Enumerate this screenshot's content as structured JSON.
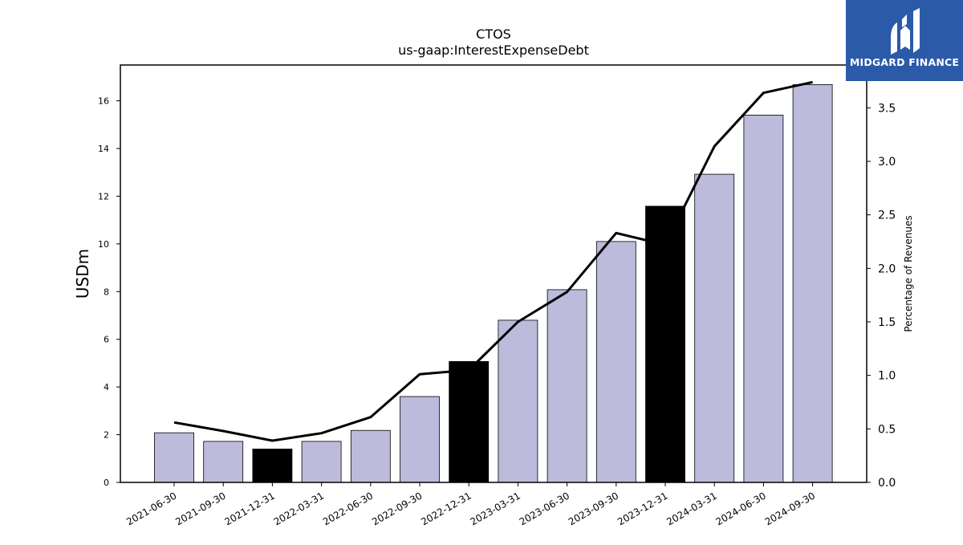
{
  "brand": {
    "name": "MIDGARD FINANCE",
    "bg_color": "#2b5aa9",
    "icon": "midgard-logo-icon"
  },
  "chart_data": {
    "type": "bar",
    "title": "CTOS",
    "subtitle": "us-gaap:InterestExpenseDebt",
    "ylabel": "USDm",
    "y2label": "Percentage of Revenues",
    "categories": [
      "2021-06-30",
      "2021-09-30",
      "2021-12-31",
      "2022-03-31",
      "2022-06-30",
      "2022-09-30",
      "2022-12-31",
      "2023-03-31",
      "2023-06-30",
      "2023-09-30",
      "2023-12-31",
      "2024-03-31",
      "2024-06-30",
      "2024-09-30"
    ],
    "series": [
      {
        "type": "bar",
        "axis": "left",
        "values": [
          2.08,
          1.72,
          1.4,
          1.72,
          2.18,
          3.6,
          5.07,
          6.8,
          8.08,
          10.1,
          11.58,
          12.92,
          15.4,
          16.68
        ],
        "colors": [
          "#bdbbdb",
          "#bdbbdb",
          "#000000",
          "#bdbbdb",
          "#bdbbdb",
          "#bdbbdb",
          "#000000",
          "#bdbbdb",
          "#bdbbdb",
          "#bdbbdb",
          "#000000",
          "#bdbbdb",
          "#bdbbdb",
          "#bdbbdb"
        ]
      },
      {
        "type": "line",
        "axis": "right",
        "color": "#000000",
        "values": [
          0.56,
          0.48,
          0.39,
          0.46,
          0.61,
          1.01,
          1.05,
          1.5,
          1.78,
          2.33,
          2.22,
          3.14,
          3.64,
          3.74
        ]
      }
    ],
    "ylim": [
      0,
      17.5
    ],
    "y2lim": [
      0,
      3.9
    ],
    "yticks": [
      0,
      2,
      4,
      6,
      8,
      10,
      12,
      14,
      16
    ],
    "y2ticks": [
      "0.0",
      "0.5",
      "1.0",
      "1.5",
      "2.0",
      "2.5",
      "3.0",
      "3.5"
    ],
    "grid": false,
    "legend": "none"
  }
}
